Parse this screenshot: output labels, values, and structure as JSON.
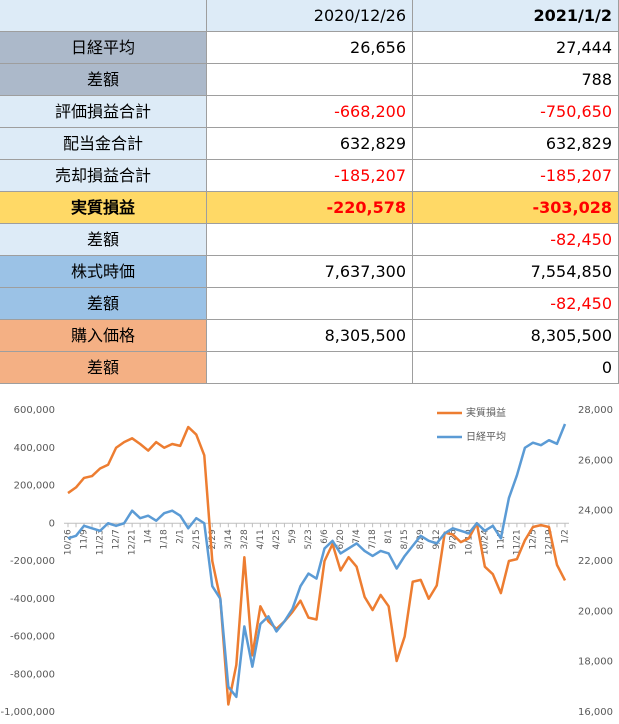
{
  "table": {
    "columns": [
      "2020/12/26",
      "2021/1/2"
    ],
    "column_bold": [
      false,
      true
    ],
    "header_fill": "#ddebf7",
    "rows": [
      {
        "label": "日経平均",
        "values": [
          "26,656",
          "27,444"
        ],
        "fill": "#acb9ca",
        "value_fill": "#ffffff",
        "text_color": "#000000",
        "bold": false
      },
      {
        "label": "差額",
        "values": [
          null,
          "788"
        ],
        "fill": "#acb9ca",
        "value_fill": "#ffffff",
        "text_color": "#000000",
        "bold": false
      },
      {
        "label": "評価損益合計",
        "values": [
          "-668,200",
          "-750,650"
        ],
        "fill": "#ddebf7",
        "value_fill": "#ffffff",
        "text_color": "#ff0000",
        "bold": false
      },
      {
        "label": "配当金合計",
        "values": [
          "632,829",
          "632,829"
        ],
        "fill": "#ddebf7",
        "value_fill": "#ffffff",
        "text_color": "#000000",
        "bold": false
      },
      {
        "label": "売却損益合計",
        "values": [
          "-185,207",
          "-185,207"
        ],
        "fill": "#ddebf7",
        "value_fill": "#ffffff",
        "text_color": "#ff0000",
        "bold": false
      },
      {
        "label": "実質損益",
        "values": [
          "-220,578",
          "-303,028"
        ],
        "fill": "#ffd966",
        "value_fill": "#ffd966",
        "text_color": "#ff0000",
        "bold": true
      },
      {
        "label": "差額",
        "values": [
          null,
          "-82,450"
        ],
        "fill": "#ddebf7",
        "value_fill": "#ffffff",
        "text_color": "#ff0000",
        "bold": false
      },
      {
        "label": "株式時価",
        "values": [
          "7,637,300",
          "7,554,850"
        ],
        "fill": "#9bc2e6",
        "value_fill": "#ffffff",
        "text_color": "#000000",
        "bold": false
      },
      {
        "label": "差額",
        "values": [
          null,
          "-82,450"
        ],
        "fill": "#9bc2e6",
        "value_fill": "#ffffff",
        "text_color": "#ff0000",
        "bold": false
      },
      {
        "label": "購入価格",
        "values": [
          "8,305,500",
          "8,305,500"
        ],
        "fill": "#f4b084",
        "value_fill": "#ffffff",
        "text_color": "#000000",
        "bold": false
      },
      {
        "label": "差額",
        "values": [
          null,
          "0"
        ],
        "fill": "#f4b084",
        "value_fill": "#ffffff",
        "text_color": "#000000",
        "bold": false
      }
    ]
  },
  "chart_data": {
    "type": "line",
    "categories": [
      "10/26",
      null,
      "11/9",
      null,
      "11/23",
      null,
      "12/7",
      null,
      "12/21",
      null,
      "1/4",
      null,
      "1/18",
      null,
      "2/1",
      null,
      "2/15",
      null,
      "2/29",
      null,
      "3/14",
      null,
      "3/28",
      null,
      "4/11",
      null,
      "4/25",
      null,
      "5/9",
      null,
      "5/23",
      null,
      "6/6",
      null,
      "6/20",
      null,
      "7/4",
      null,
      "7/18",
      null,
      "8/1",
      null,
      "8/15",
      null,
      "8/29",
      null,
      "9/12",
      null,
      "9/26",
      null,
      "10/10",
      null,
      "10/24",
      null,
      "11/7",
      null,
      "11/21",
      null,
      "12/5",
      null,
      "12/19",
      null,
      "1/2"
    ],
    "series": [
      {
        "name": "実質損益",
        "color": "#ed7d31",
        "axis": "y",
        "values": [
          160000,
          190000,
          240000,
          250000,
          290000,
          310000,
          400000,
          430000,
          450000,
          420000,
          385000,
          430000,
          400000,
          420000,
          410000,
          510000,
          470000,
          360000,
          -200000,
          -400000,
          -960000,
          -750000,
          -180000,
          -700000,
          -440000,
          -520000,
          -560000,
          -520000,
          -470000,
          -410000,
          -500000,
          -510000,
          -200000,
          -110000,
          -250000,
          -180000,
          -230000,
          -390000,
          -460000,
          -380000,
          -440000,
          -730000,
          -600000,
          -310000,
          -300000,
          -400000,
          -330000,
          -50000,
          -60000,
          -100000,
          -80000,
          0,
          -230000,
          -270000,
          -370000,
          -200000,
          -190000,
          -90000,
          -20000,
          -10000,
          -20000,
          -220578,
          -303028
        ]
      },
      {
        "name": "日経平均",
        "color": "#5b9bd5",
        "axis": "y2",
        "values": [
          22900,
          23000,
          23400,
          23300,
          23200,
          23500,
          23400,
          23500,
          24000,
          23700,
          23800,
          23600,
          23900,
          24000,
          23800,
          23300,
          23700,
          23500,
          21000,
          20500,
          17000,
          16600,
          19400,
          17800,
          19500,
          19800,
          19200,
          19600,
          20100,
          21000,
          21500,
          21300,
          22500,
          22800,
          22300,
          22500,
          22700,
          22400,
          22200,
          22400,
          22300,
          21700,
          22200,
          22600,
          23000,
          22800,
          22700,
          23100,
          23300,
          23200,
          23100,
          23500,
          23200,
          23400,
          22900,
          24500,
          25400,
          26500,
          26700,
          26600,
          26800,
          26656,
          27444
        ]
      }
    ],
    "ylim": [
      -1000000,
      600000
    ],
    "yticks": [
      {
        "value": -1000000,
        "label": "-1,000,000"
      },
      {
        "value": -800000,
        "label": "-800,000"
      },
      {
        "value": -600000,
        "label": "-600,000"
      },
      {
        "value": -400000,
        "label": "-400,000"
      },
      {
        "value": -200000,
        "label": "-200,000"
      },
      0,
      {
        "value": 200000,
        "label": "200,000"
      },
      {
        "value": 400000,
        "label": "400,000"
      },
      {
        "value": 600000,
        "label": "600,000"
      }
    ],
    "y2lim": [
      16000,
      28000
    ],
    "y2ticks": [
      {
        "value": 16000,
        "label": "16,000"
      },
      {
        "value": 18000,
        "label": "18,000"
      },
      {
        "value": 20000,
        "label": "20,000"
      },
      {
        "value": 22000,
        "label": "22,000"
      },
      {
        "value": 24000,
        "label": "24,000"
      },
      {
        "value": 26000,
        "label": "26,000"
      },
      {
        "value": 28000,
        "label": "28,000"
      }
    ],
    "grid": false,
    "legend": "top-right"
  }
}
